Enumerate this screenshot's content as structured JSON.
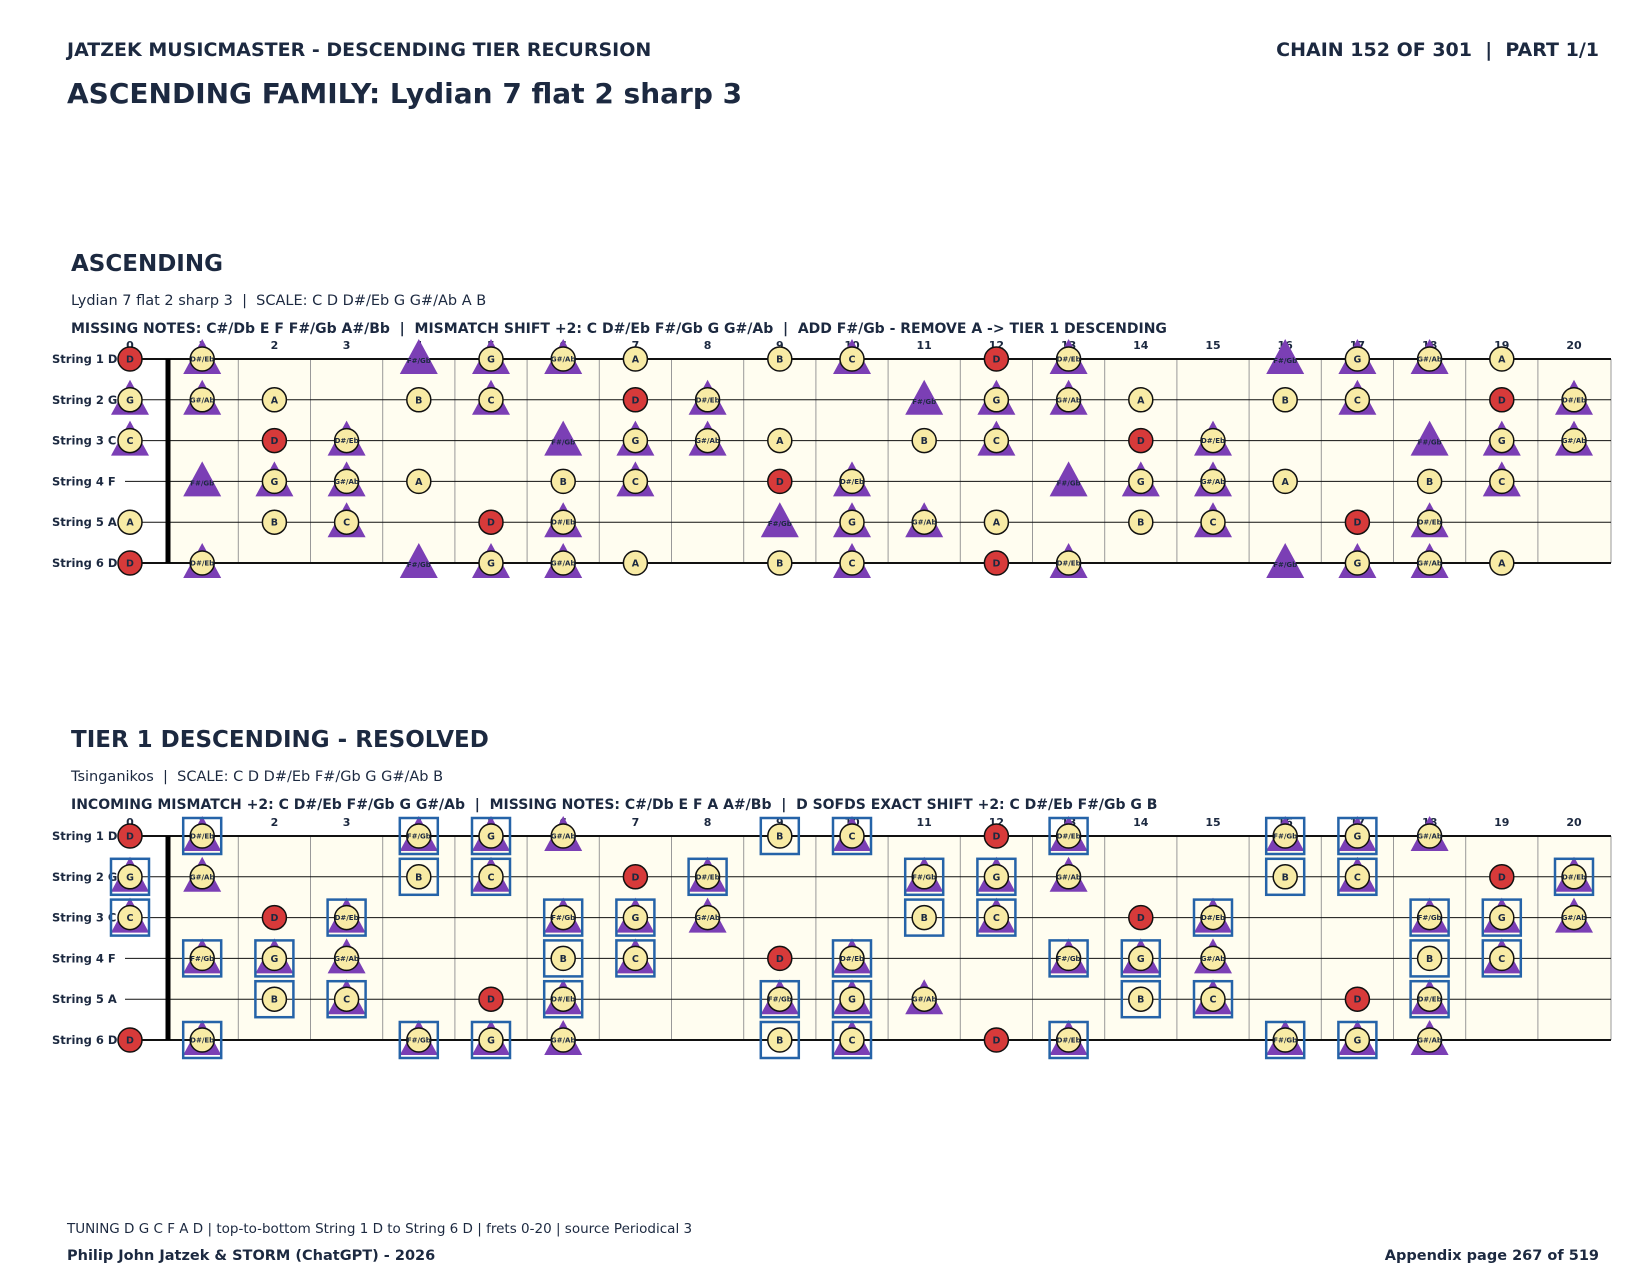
{
  "header": {
    "left": "JATZEK MUSICMASTER - DESCENDING TIER RECURSION",
    "right": "CHAIN 152 OF 301  |  PART 1/1",
    "title": "ASCENDING FAMILY: Lydian 7 flat 2 sharp 3"
  },
  "frets": [
    0,
    1,
    2,
    3,
    4,
    5,
    6,
    7,
    8,
    9,
    10,
    11,
    12,
    13,
    14,
    15,
    16,
    17,
    18,
    19,
    20
  ],
  "panels": [
    {
      "title": "ASCENDING",
      "subtitle": "Lydian 7 flat 2 sharp 3  |  SCALE: C D D#/Eb G G#/Ab A B",
      "info": "MISSING NOTES: C#/Db E F F#/Gb A#/Bb  |  MISMATCH SHIFT +2: C D#/Eb F#/Gb G G#/Ab  |  ADD F#/Gb - REMOVE A -> TIER 1 DESCENDING",
      "strings": [
        {
          "label": "String 1 D",
          "notes": [
            "D",
            "D#/Eb",
            null,
            null,
            "F#/Gb",
            "G",
            "G#/Ab",
            "A",
            null,
            "B",
            "C",
            null,
            "D",
            "D#/Eb",
            null,
            null,
            "F#/Gb",
            "G",
            "G#/Ab",
            "A",
            null
          ],
          "marks": [
            "r",
            "ct",
            null,
            null,
            "t",
            "ct",
            "ct",
            "c",
            null,
            "c",
            "ct",
            null,
            "r",
            "ct",
            null,
            null,
            "t",
            "ct",
            "ct",
            "c",
            null
          ]
        },
        {
          "label": "String 2 G",
          "notes": [
            "G",
            "G#/Ab",
            "A",
            null,
            "B",
            "C",
            null,
            "D",
            "D#/Eb",
            null,
            null,
            "F#/Gb",
            "G",
            "G#/Ab",
            "A",
            null,
            "B",
            "C",
            null,
            "D",
            "D#/Eb"
          ],
          "marks": [
            "ct",
            "ct",
            "c",
            null,
            "c",
            "ct",
            null,
            "r",
            "ct",
            null,
            null,
            "t",
            "ct",
            "ct",
            "c",
            null,
            "c",
            "ct",
            null,
            "r",
            "ct"
          ]
        },
        {
          "label": "String 3 C",
          "notes": [
            "C",
            null,
            "D",
            "D#/Eb",
            null,
            null,
            "F#/Gb",
            "G",
            "G#/Ab",
            "A",
            null,
            "B",
            "C",
            null,
            "D",
            "D#/Eb",
            null,
            null,
            "F#/Gb",
            "G",
            "G#/Ab"
          ],
          "marks": [
            "ct",
            null,
            "r",
            "ct",
            null,
            null,
            "t",
            "ct",
            "ct",
            "c",
            null,
            "c",
            "ct",
            null,
            "r",
            "ct",
            null,
            null,
            "t",
            "ct",
            "ct"
          ]
        },
        {
          "label": "String 4 F",
          "notes": [
            null,
            "F#/Gb",
            "G",
            "G#/Ab",
            "A",
            null,
            "B",
            "C",
            null,
            "D",
            "D#/Eb",
            null,
            null,
            "F#/Gb",
            "G",
            "G#/Ab",
            "A",
            null,
            "B",
            "C",
            null
          ],
          "marks": [
            null,
            "t",
            "ct",
            "ct",
            "c",
            null,
            "c",
            "ct",
            null,
            "r",
            "ct",
            null,
            null,
            "t",
            "ct",
            "ct",
            "c",
            null,
            "c",
            "ct",
            null
          ]
        },
        {
          "label": "String 5 A",
          "notes": [
            "A",
            null,
            "B",
            "C",
            null,
            "D",
            "D#/Eb",
            null,
            null,
            "F#/Gb",
            "G",
            "G#/Ab",
            "A",
            null,
            "B",
            "C",
            null,
            "D",
            "D#/Eb",
            null,
            null
          ],
          "marks": [
            "c",
            null,
            "c",
            "ct",
            null,
            "r",
            "ct",
            null,
            null,
            "t",
            "ct",
            "ct",
            "c",
            null,
            "c",
            "ct",
            null,
            "r",
            "ct",
            null,
            null
          ]
        },
        {
          "label": "String 6 D",
          "notes": [
            "D",
            "D#/Eb",
            null,
            null,
            "F#/Gb",
            "G",
            "G#/Ab",
            "A",
            null,
            "B",
            "C",
            null,
            "D",
            "D#/Eb",
            null,
            null,
            "F#/Gb",
            "G",
            "G#/Ab",
            "A",
            null
          ],
          "marks": [
            "r",
            "ct",
            null,
            null,
            "t",
            "ct",
            "ct",
            "c",
            null,
            "c",
            "ct",
            null,
            "r",
            "ct",
            null,
            null,
            "t",
            "ct",
            "ct",
            "c",
            null
          ]
        }
      ]
    },
    {
      "title": "TIER 1 DESCENDING - RESOLVED",
      "subtitle": "Tsinganikos  |  SCALE: C D D#/Eb F#/Gb G G#/Ab B",
      "info": "INCOMING MISMATCH +2: C D#/Eb F#/Gb G G#/Ab  |  MISSING NOTES: C#/Db E F A A#/Bb  |  D SOFDS EXACT SHIFT +2: C D#/Eb F#/Gb G B",
      "strings": [
        {
          "label": "String 1 D",
          "notes": [
            "D",
            "D#/Eb",
            null,
            null,
            "F#/Gb",
            "G",
            "G#/Ab",
            null,
            null,
            "B",
            "C",
            null,
            "D",
            "D#/Eb",
            null,
            null,
            "F#/Gb",
            "G",
            "G#/Ab",
            null,
            null
          ],
          "marks": [
            "r",
            "ctb",
            null,
            null,
            "ctb",
            "ctb",
            "ct",
            null,
            null,
            "cb",
            "ctb",
            null,
            "r",
            "ctb",
            null,
            null,
            "ctb",
            "ctb",
            "ct",
            null,
            null
          ]
        },
        {
          "label": "String 2 G",
          "notes": [
            "G",
            "G#/Ab",
            null,
            null,
            "B",
            "C",
            null,
            "D",
            "D#/Eb",
            null,
            null,
            "F#/Gb",
            "G",
            "G#/Ab",
            null,
            null,
            "B",
            "C",
            null,
            "D",
            "D#/Eb"
          ],
          "marks": [
            "ctb",
            "ct",
            null,
            null,
            "cb",
            "ctb",
            null,
            "r",
            "ctb",
            null,
            null,
            "ctb",
            "ctb",
            "ct",
            null,
            null,
            "cb",
            "ctb",
            null,
            "r",
            "ctb"
          ]
        },
        {
          "label": "String 3 C",
          "notes": [
            "C",
            null,
            "D",
            "D#/Eb",
            null,
            null,
            "F#/Gb",
            "G",
            "G#/Ab",
            null,
            null,
            "B",
            "C",
            null,
            "D",
            "D#/Eb",
            null,
            null,
            "F#/Gb",
            "G",
            "G#/Ab"
          ],
          "marks": [
            "ctb",
            null,
            "r",
            "ctb",
            null,
            null,
            "ctb",
            "ctb",
            "ct",
            null,
            null,
            "cb",
            "ctb",
            null,
            "r",
            "ctb",
            null,
            null,
            "ctb",
            "ctb",
            "ct"
          ]
        },
        {
          "label": "String 4 F",
          "notes": [
            null,
            "F#/Gb",
            "G",
            "G#/Ab",
            null,
            null,
            "B",
            "C",
            null,
            "D",
            "D#/Eb",
            null,
            null,
            "F#/Gb",
            "G",
            "G#/Ab",
            null,
            null,
            "B",
            "C",
            null
          ],
          "marks": [
            null,
            "ctb",
            "ctb",
            "ct",
            null,
            null,
            "cb",
            "ctb",
            null,
            "r",
            "ctb",
            null,
            null,
            "ctb",
            "ctb",
            "ct",
            null,
            null,
            "cb",
            "ctb",
            null
          ]
        },
        {
          "label": "String 5 A",
          "notes": [
            null,
            null,
            "B",
            "C",
            null,
            "D",
            "D#/Eb",
            null,
            null,
            "F#/Gb",
            "G",
            "G#/Ab",
            null,
            null,
            "B",
            "C",
            null,
            "D",
            "D#/Eb",
            null,
            null
          ],
          "marks": [
            null,
            null,
            "cb",
            "ctb",
            null,
            "r",
            "ctb",
            null,
            null,
            "ctb",
            "ctb",
            "ct",
            null,
            null,
            "cb",
            "ctb",
            null,
            "r",
            "ctb",
            null,
            null
          ]
        },
        {
          "label": "String 6 D",
          "notes": [
            "D",
            "D#/Eb",
            null,
            null,
            "F#/Gb",
            "G",
            "G#/Ab",
            null,
            null,
            "B",
            "C",
            null,
            "D",
            "D#/Eb",
            null,
            null,
            "F#/Gb",
            "G",
            "G#/Ab",
            null,
            null
          ],
          "marks": [
            "r",
            "ctb",
            null,
            null,
            "ctb",
            "ctb",
            "ct",
            null,
            null,
            "cb",
            "ctb",
            null,
            "r",
            "ctb",
            null,
            null,
            "ctb",
            "ctb",
            "ct",
            null,
            null
          ]
        }
      ]
    }
  ],
  "footer": {
    "note": "TUNING D G C F A D | top-to-bottom String 1 D to String 6 D | frets 0-20 | source Periodical 3",
    "credit": "Philip John Jatzek & STORM (ChatGPT) - 2026",
    "page": "Appendix page 267 of 519"
  }
}
